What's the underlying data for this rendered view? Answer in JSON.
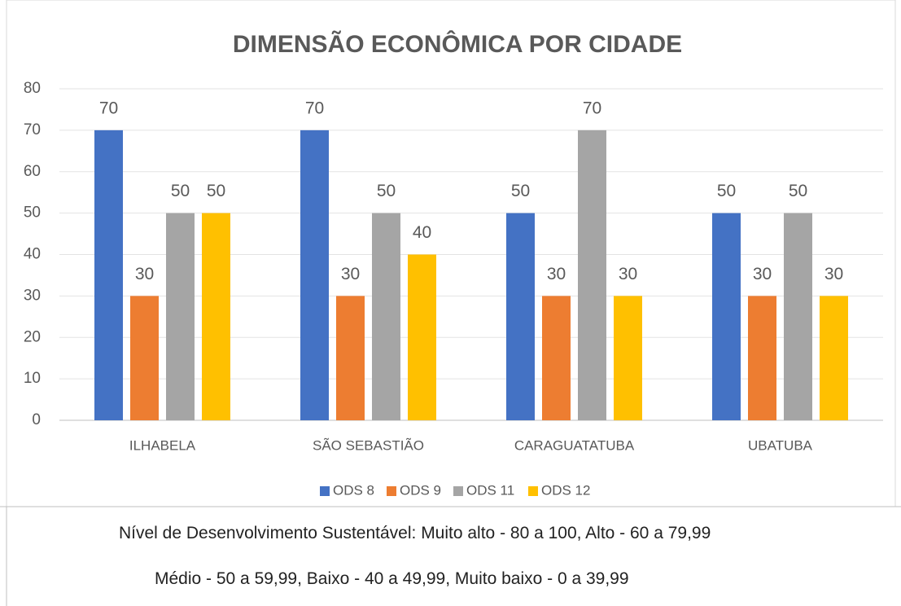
{
  "chart_data": {
    "type": "bar",
    "title": "DIMENSÃO ECONÔMICA POR CIDADE",
    "categories": [
      "ILHABELA",
      "SÃO SEBASTIÃO",
      "CARAGUATATUBA",
      "UBATUBA"
    ],
    "series": [
      {
        "name": "ODS 8",
        "color": "#4472c4",
        "values": [
          70,
          70,
          50,
          50
        ]
      },
      {
        "name": "ODS 9",
        "color": "#ed7d31",
        "values": [
          30,
          30,
          30,
          30
        ]
      },
      {
        "name": "ODS 11",
        "color": "#a5a5a5",
        "values": [
          50,
          50,
          70,
          50
        ]
      },
      {
        "name": "ODS 12",
        "color": "#ffc000",
        "values": [
          50,
          40,
          30,
          30
        ]
      }
    ],
    "ylim": [
      0,
      80
    ],
    "yticks": [
      0,
      10,
      20,
      30,
      40,
      50,
      60,
      70,
      80
    ],
    "grid": true,
    "legend": "bottom"
  },
  "notes": [
    "Nível de Desenvolvimento Sustentável: Muito alto - 80 a 100, Alto - 60 a 79,99",
    "Médio - 50 a 59,99, Baixo - 40 a 49,99, Muito baixo - 0 a 39,99"
  ]
}
